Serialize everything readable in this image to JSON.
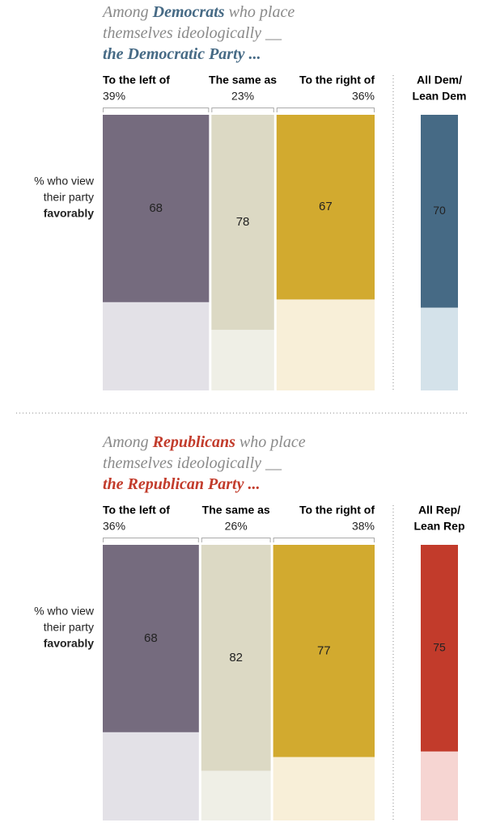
{
  "chart_data": [
    {
      "type": "mosaic",
      "title": [
        [
          "Among",
          "Democrats",
          "who place"
        ],
        [
          "themselves ideologically __"
        ],
        [
          "the Democratic Party ..."
        ]
      ],
      "accent": "#466a85",
      "y_label": [
        "% who view",
        "their party",
        "favorably"
      ],
      "categories": [
        "To the left of",
        "The same as",
        "To the right of"
      ],
      "widths": [
        39,
        23,
        36
      ],
      "width_labels": [
        "39%",
        "23%",
        "36%"
      ],
      "values": [
        68,
        78,
        67
      ],
      "colors": [
        "#756b7e",
        "#dcd9c4",
        "#d2aa2f"
      ],
      "light_colors": [
        "#e3e1e7",
        "#efefe6",
        "#f8efd8"
      ],
      "label_colors": [
        "#ffffff",
        "#222222",
        "#222222"
      ],
      "ylim": [
        0,
        100
      ],
      "total": {
        "label": [
          "All Dem/",
          "Lean Dem"
        ],
        "value": 70,
        "color": "#466a85",
        "light_color": "#d4e2ea",
        "label_color": "#ffffff"
      }
    },
    {
      "type": "mosaic",
      "title": [
        [
          "Among",
          "Republicans",
          "who place"
        ],
        [
          "themselves ideologically __"
        ],
        [
          "the Republican Party ..."
        ]
      ],
      "accent": "#c23b2b",
      "y_label": [
        "% who view",
        "their party",
        "favorably"
      ],
      "categories": [
        "To the left of",
        "The same as",
        "To the right of"
      ],
      "widths": [
        36,
        26,
        38
      ],
      "width_labels": [
        "36%",
        "26%",
        "38%"
      ],
      "values": [
        68,
        82,
        77
      ],
      "colors": [
        "#756b7e",
        "#dcd9c4",
        "#d2aa2f"
      ],
      "light_colors": [
        "#e3e1e7",
        "#efefe6",
        "#f8efd8"
      ],
      "label_colors": [
        "#ffffff",
        "#222222",
        "#222222"
      ],
      "ylim": [
        0,
        100
      ],
      "total": {
        "label": [
          "All Rep/",
          "Lean Rep"
        ],
        "value": 75,
        "color": "#c23b2b",
        "light_color": "#f6d5d2",
        "label_color": "#ffffff"
      }
    }
  ]
}
